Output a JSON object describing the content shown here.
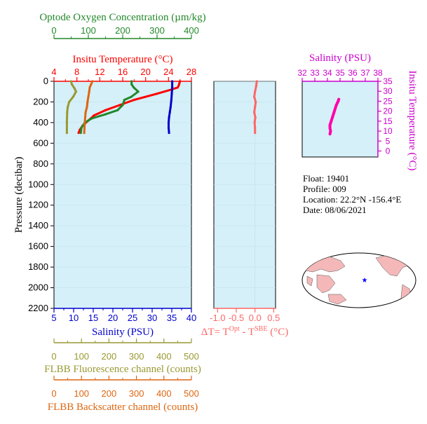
{
  "chart_data": {
    "type": "line",
    "info": {
      "float": "Float:  19401",
      "profile": "Profile:  009",
      "location": "Location:  22.2°N  -156.4°E",
      "date": "Date:  08/06/2021"
    },
    "main_profile": {
      "ylabel": "Pressure (decibar)",
      "ylim": [
        2200,
        0
      ],
      "yticks": [
        "0",
        "200",
        "400",
        "600",
        "800",
        "1000",
        "1200",
        "1400",
        "1600",
        "1800",
        "2000",
        "2200"
      ],
      "axes": {
        "oxygen": {
          "label": "Optode Oxygen Concentration (µm/kg)",
          "ticks": [
            "0",
            "100",
            "200",
            "300",
            "400"
          ],
          "range": [
            0,
            400
          ],
          "color": "#22882a"
        },
        "temperature": {
          "label": "Insitu Temperature (°C)",
          "ticks": [
            "4",
            "8",
            "12",
            "16",
            "20",
            "24",
            "28"
          ],
          "range": [
            4,
            28
          ],
          "color": "#ff0000"
        },
        "salinity": {
          "label": "Salinity (PSU)",
          "ticks": [
            "5",
            "10",
            "15",
            "20",
            "25",
            "30",
            "35",
            "40"
          ],
          "range": [
            5,
            40
          ],
          "color": "#0000cc"
        },
        "fluorescence": {
          "label": "FLBB Fluorescence channel (counts)",
          "ticks": [
            "0",
            "100",
            "200",
            "300",
            "400",
            "500"
          ],
          "range": [
            0,
            500
          ],
          "color": "#999933"
        },
        "backscatter": {
          "label": "FLBB Backscatter channel (counts)",
          "ticks": [
            "0",
            "100",
            "200",
            "300",
            "400",
            "500"
          ],
          "range": [
            0,
            500
          ],
          "color": "#dd6611"
        }
      },
      "series": [
        {
          "var": "temperature",
          "color": "#ff0000",
          "values": [
            [
              26.0,
              0
            ],
            [
              25.9,
              20
            ],
            [
              25.8,
              40
            ],
            [
              25.6,
              60
            ],
            [
              24.5,
              80
            ],
            [
              22.0,
              120
            ],
            [
              18.0,
              180
            ],
            [
              15.5,
              230
            ],
            [
              13.0,
              280
            ],
            [
              11.0,
              330
            ],
            [
              10.0,
              380
            ],
            [
              9.0,
              430
            ],
            [
              8.5,
              470
            ],
            [
              8.3,
              500
            ]
          ]
        },
        {
          "var": "salinity",
          "color": "#0000cc",
          "values": [
            [
              35.1,
              0
            ],
            [
              35.1,
              60
            ],
            [
              35.0,
              120
            ],
            [
              34.9,
              180
            ],
            [
              34.7,
              250
            ],
            [
              34.5,
              300
            ],
            [
              34.3,
              350
            ],
            [
              34.2,
              400
            ],
            [
              34.2,
              450
            ],
            [
              34.3,
              500
            ]
          ]
        },
        {
          "var": "oxygen",
          "color": "#22882a",
          "values": [
            [
              226,
              0
            ],
            [
              226,
              30
            ],
            [
              232,
              60
            ],
            [
              245,
              100
            ],
            [
              225,
              150
            ],
            [
              205,
              180
            ],
            [
              200,
              230
            ],
            [
              185,
              280
            ],
            [
              150,
              320
            ],
            [
              110,
              360
            ],
            [
              90,
              400
            ],
            [
              80,
              450
            ],
            [
              78,
              500
            ]
          ]
        },
        {
          "var": "fluorescence",
          "color": "#999933",
          "values": [
            [
              62,
              0
            ],
            [
              65,
              30
            ],
            [
              75,
              70
            ],
            [
              80,
              100
            ],
            [
              70,
              150
            ],
            [
              55,
              200
            ],
            [
              50,
              250
            ],
            [
              48,
              300
            ],
            [
              47,
              400
            ],
            [
              47,
              500
            ]
          ]
        },
        {
          "var": "backscatter",
          "color": "#dd6611",
          "values": [
            [
              140,
              0
            ],
            [
              135,
              30
            ],
            [
              130,
              60
            ],
            [
              128,
              100
            ],
            [
              125,
              150
            ],
            [
              122,
              200
            ],
            [
              120,
              250
            ],
            [
              115,
              300
            ],
            [
              112,
              400
            ],
            [
              110,
              500
            ]
          ]
        }
      ]
    },
    "delta_panel": {
      "xlabel": "ΔT= T",
      "xlabel_sup1": "Opt",
      "xlabel_mid": " - T",
      "xlabel_sup2": "SBE",
      "xlabel_end": " (°C)",
      "xticks": [
        "-1.0",
        "-0.5",
        "0.0",
        "0.5"
      ],
      "xlim": [
        -1.1,
        0.55
      ],
      "ylim": [
        2200,
        0
      ],
      "color": "#ff6666",
      "values": [
        [
          0.05,
          0
        ],
        [
          0.03,
          50
        ],
        [
          0.0,
          100
        ],
        [
          -0.02,
          150
        ],
        [
          0.02,
          200
        ],
        [
          0.0,
          250
        ],
        [
          -0.02,
          300
        ],
        [
          0.01,
          350
        ],
        [
          -0.01,
          400
        ],
        [
          0.0,
          450
        ],
        [
          0.0,
          500
        ]
      ]
    },
    "ts_panel": {
      "title": "Salinity (PSU)",
      "ylabel": "Insitu Temperature (°C)",
      "xticks": [
        "32",
        "33",
        "34",
        "35",
        "36",
        "37",
        "38"
      ],
      "yticks": [
        "0",
        "5",
        "10",
        "15",
        "20",
        "25",
        "30",
        "35"
      ],
      "xlim": [
        32,
        38
      ],
      "ylim": [
        -3,
        35
      ],
      "color": "#ff00aa",
      "values": [
        [
          34.2,
          8.5
        ],
        [
          34.25,
          10
        ],
        [
          34.2,
          11.5
        ],
        [
          34.2,
          13
        ],
        [
          34.3,
          15
        ],
        [
          34.4,
          17
        ],
        [
          34.5,
          19
        ],
        [
          34.6,
          21
        ],
        [
          34.7,
          23
        ],
        [
          34.85,
          25
        ],
        [
          34.9,
          26
        ]
      ]
    },
    "map": {
      "marker": "★",
      "marker_color": "#0000ff"
    }
  }
}
